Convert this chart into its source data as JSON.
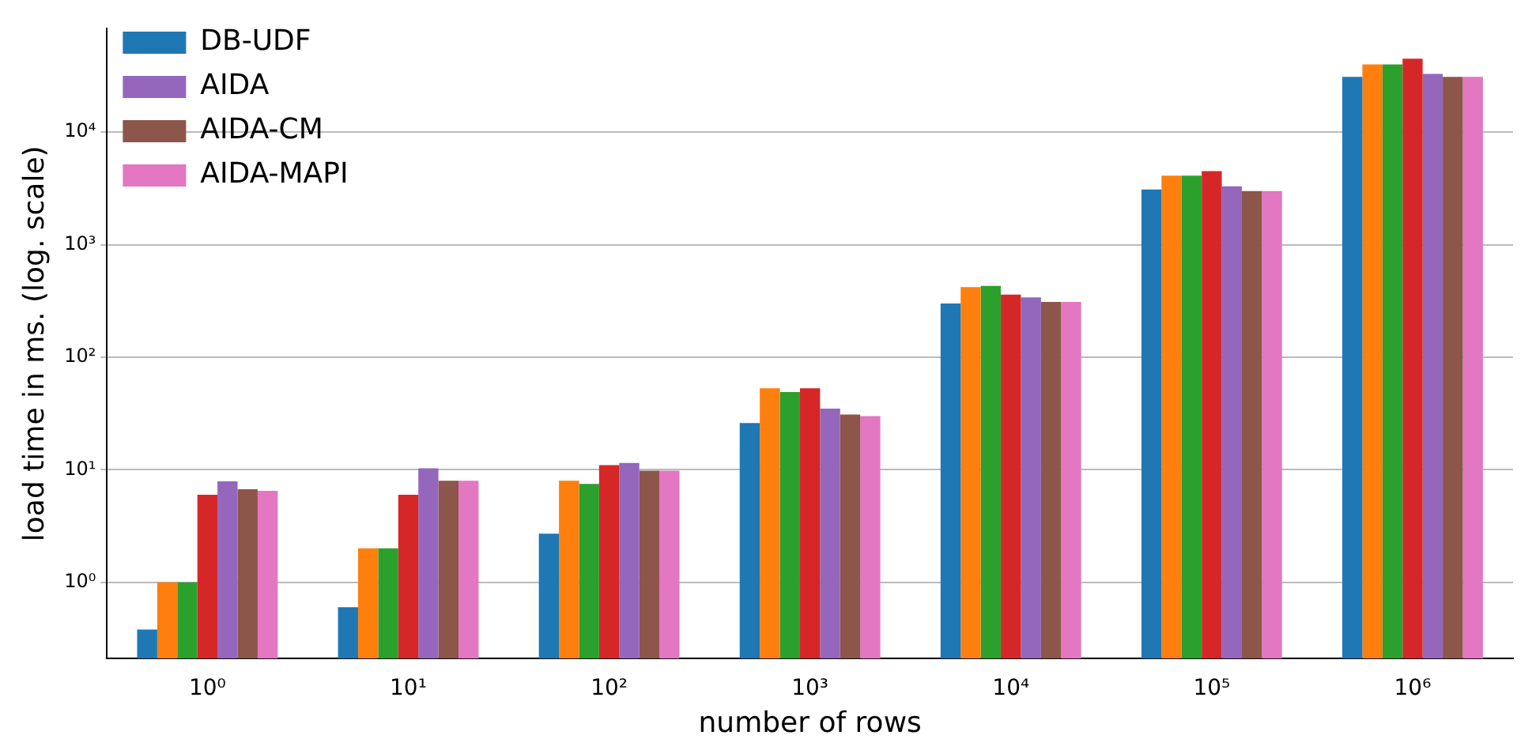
{
  "chart_data": {
    "type": "bar",
    "xlabel": "number of rows",
    "ylabel": "load time in ms. (log. scale)",
    "categories": [
      "10⁰",
      "10¹",
      "10²",
      "10³",
      "10⁴",
      "10⁵",
      "10⁶"
    ],
    "series": [
      {
        "name": "DB-UDF",
        "color": "#1f77b4",
        "values": [
          0.38,
          0.6,
          2.7,
          26,
          300,
          3100,
          31000
        ]
      },
      {
        "color": "#ff7f0e",
        "values": [
          1,
          2,
          8,
          53,
          420,
          4100,
          40000
        ]
      },
      {
        "color": "#2ca02c",
        "values": [
          1,
          2,
          7.5,
          49,
          430,
          4100,
          40000
        ]
      },
      {
        "color": "#d62728",
        "values": [
          6,
          6,
          11,
          53,
          360,
          4500,
          45000
        ]
      },
      {
        "name": "AIDA",
        "color": "#9467bd",
        "values": [
          7.9,
          10.3,
          11.5,
          35,
          340,
          3300,
          33000
        ]
      },
      {
        "name": "AIDA-CM",
        "color": "#8c564b",
        "values": [
          6.7,
          8,
          9.8,
          31,
          310,
          3000,
          31000
        ]
      },
      {
        "name": "AIDA-MAPI",
        "color": "#e377c2",
        "values": [
          6.5,
          8,
          9.8,
          30,
          310,
          3000,
          31000
        ]
      }
    ],
    "log": true,
    "ylim": [
      0.21,
      83000
    ],
    "yticks": [
      {
        "value": 1,
        "label": "10⁰"
      },
      {
        "value": 10,
        "label": "10¹"
      },
      {
        "value": 100,
        "label": "10²"
      },
      {
        "value": 1000,
        "label": "10³"
      },
      {
        "value": 10000,
        "label": "10⁴"
      }
    ],
    "grid": "y",
    "legend": "top left"
  }
}
